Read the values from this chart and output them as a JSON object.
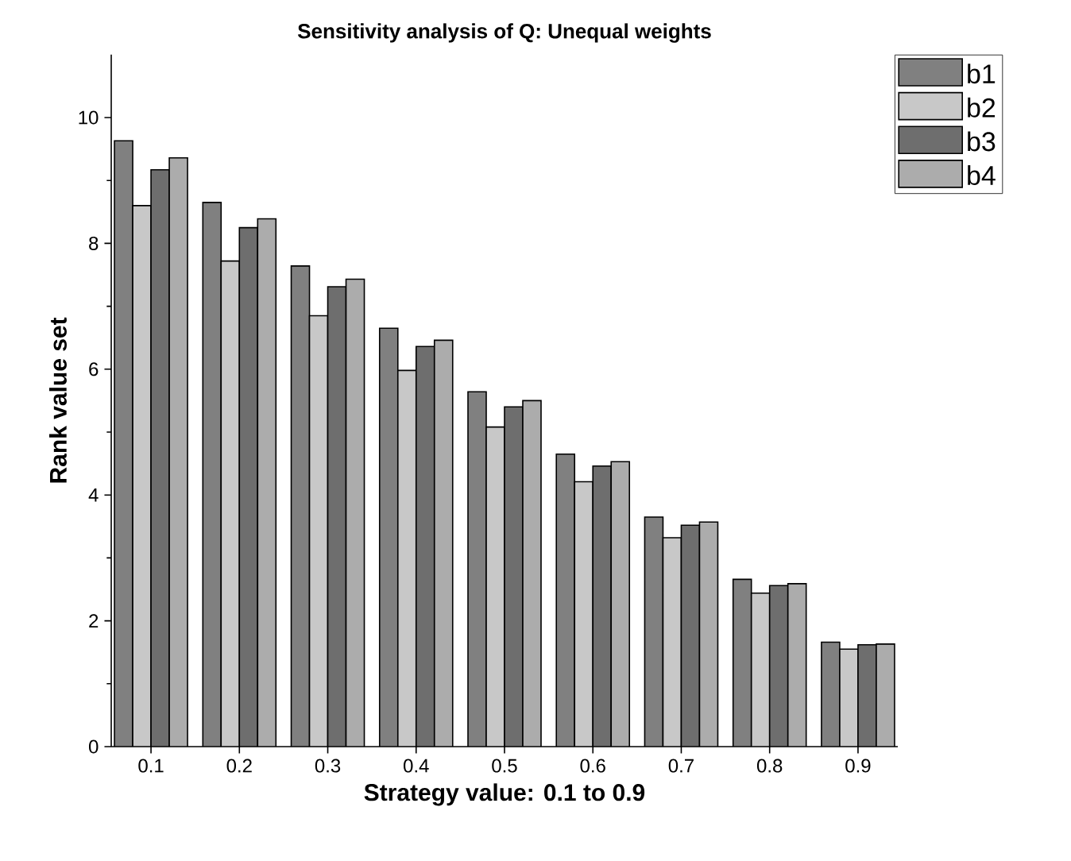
{
  "chart_data": {
    "type": "bar",
    "title": "Sensitivity analysis of Q: Unequal weights",
    "xlabel": "Strategy value: 0.1 to 0.9",
    "ylabel": "Rank value set",
    "categories": [
      "0.1",
      "0.2",
      "0.3",
      "0.4",
      "0.5",
      "0.6",
      "0.7",
      "0.8",
      "0.9"
    ],
    "series": [
      {
        "name": "b1",
        "color": "#808080",
        "values": [
          9.63,
          8.65,
          7.64,
          6.65,
          5.64,
          4.65,
          3.65,
          2.66,
          1.66
        ]
      },
      {
        "name": "b2",
        "color": "#c8c8c8",
        "values": [
          8.6,
          7.72,
          6.85,
          5.98,
          5.08,
          4.21,
          3.32,
          2.44,
          1.55
        ]
      },
      {
        "name": "b3",
        "color": "#6e6e6e",
        "values": [
          9.17,
          8.25,
          7.31,
          6.36,
          5.4,
          4.46,
          3.52,
          2.56,
          1.62
        ]
      },
      {
        "name": "b4",
        "color": "#acacac",
        "values": [
          9.36,
          8.39,
          7.43,
          6.46,
          5.5,
          4.53,
          3.57,
          2.59,
          1.63
        ]
      }
    ],
    "ylim": [
      0,
      11
    ],
    "yticks": [
      0,
      2,
      4,
      6,
      8,
      10
    ],
    "legend": "top right",
    "grid": false
  }
}
